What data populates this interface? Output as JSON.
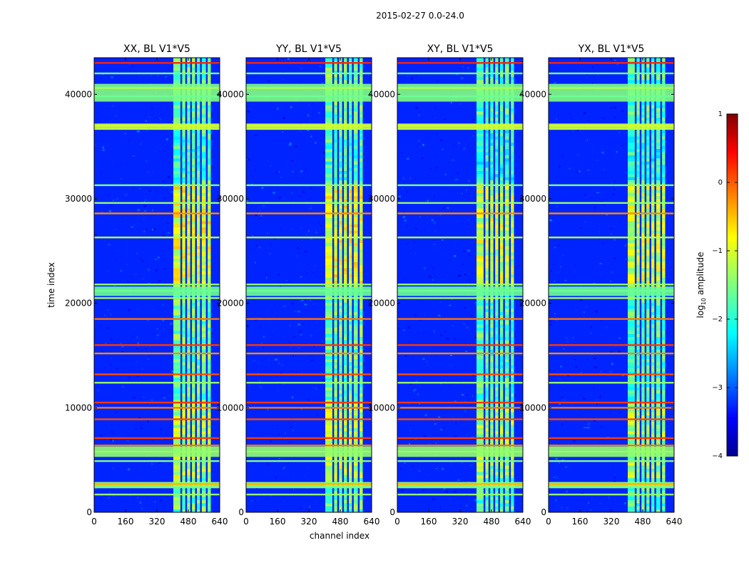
{
  "chart_data": {
    "type": "heatmap",
    "suptitle": "2015-02-27 0.0-24.0",
    "xlabel": "channel index",
    "ylabel": "time index",
    "xlim": [
      0,
      640
    ],
    "ylim": [
      0,
      43500
    ],
    "xticks": [
      0,
      160,
      320,
      480,
      640
    ],
    "yticks": [
      0,
      10000,
      20000,
      30000,
      40000
    ],
    "panels": [
      {
        "title": "XX, BL V1*V5"
      },
      {
        "title": "YY, BL V1*V5"
      },
      {
        "title": "XY, BL V1*V5"
      },
      {
        "title": "YX, BL V1*V5"
      }
    ],
    "colorbar": {
      "label": "log10 amplitude",
      "label_base": "log",
      "label_sub": "10",
      "label_rest": " amplitude",
      "range": [
        -4,
        1
      ],
      "ticks": [
        -4,
        -3,
        -2,
        -1,
        0,
        1
      ],
      "tick_labels": [
        "−4",
        "−3",
        "−2",
        "−1",
        "0",
        "1"
      ],
      "colormap": "jet"
    },
    "active_band": {
      "channels": [
        400,
        600
      ],
      "subband_edges": [
        400,
        445,
        470,
        495,
        520,
        545,
        575,
        600
      ]
    },
    "flagged_rows": [
      {
        "t": 43000,
        "level": 0.2
      },
      {
        "t": 42000,
        "level": -1.5
      },
      {
        "t": 40600,
        "level": -1.3
      },
      {
        "t": 39800,
        "level": -1.6
      },
      {
        "t": 37000,
        "level": -1.1
      },
      {
        "t": 36700,
        "level": -1.2
      },
      {
        "t": 31300,
        "level": -1.5
      },
      {
        "t": 29600,
        "level": -1.4
      },
      {
        "t": 28600,
        "level": -0.3
      },
      {
        "t": 26300,
        "level": -1.2
      },
      {
        "t": 21800,
        "level": -1.4
      },
      {
        "t": 21200,
        "level": -1.6
      },
      {
        "t": 20500,
        "level": -1.3
      },
      {
        "t": 18500,
        "level": -0.2
      },
      {
        "t": 16000,
        "level": 0.1
      },
      {
        "t": 15200,
        "level": -0.3
      },
      {
        "t": 13200,
        "level": 0.0
      },
      {
        "t": 12400,
        "level": -1.4
      },
      {
        "t": 10500,
        "level": 0.1
      },
      {
        "t": 10000,
        "level": -0.2
      },
      {
        "t": 8900,
        "level": 0.0
      },
      {
        "t": 7100,
        "level": 0.1
      },
      {
        "t": 6400,
        "level": -0.2
      },
      {
        "t": 5800,
        "level": -1.4
      },
      {
        "t": 4900,
        "level": -1.5
      },
      {
        "t": 2700,
        "level": -0.5
      },
      {
        "t": 2400,
        "level": -1.6
      },
      {
        "t": 1700,
        "level": -1.4
      }
    ],
    "wide_flag_bands": [
      {
        "from": 5300,
        "to": 6300,
        "level": -1.4
      },
      {
        "from": 2300,
        "to": 2900,
        "level": -1.3
      },
      {
        "from": 36600,
        "to": 37200,
        "level": -1.1
      },
      {
        "from": 39300,
        "to": 41000,
        "level": -1.5
      },
      {
        "from": 20700,
        "to": 21600,
        "level": -1.6
      }
    ]
  }
}
